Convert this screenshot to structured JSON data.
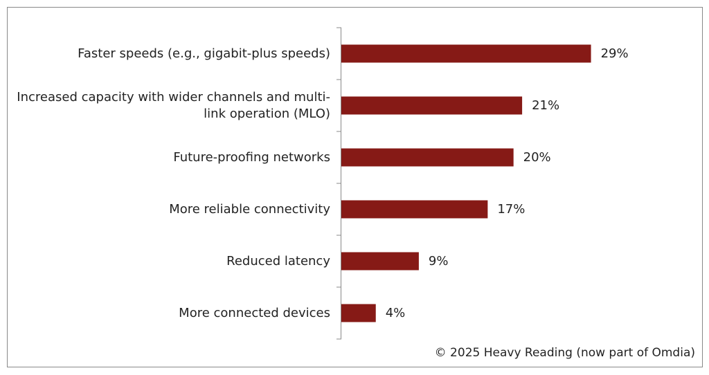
{
  "chart_data": {
    "type": "bar",
    "orientation": "horizontal",
    "categories": [
      "Faster speeds (e.g., gigabit-plus speeds)",
      "Increased capacity with wider channels and multi-link operation (MLO)",
      "Future-proofing networks",
      "More reliable connectivity",
      "Reduced latency",
      "More connected devices"
    ],
    "values": [
      29,
      21,
      20,
      17,
      9,
      4
    ],
    "value_labels": [
      "29%",
      "21%",
      "20%",
      "17%",
      "9%",
      "4%"
    ],
    "color": "#861a16",
    "xlim": [
      0,
      30
    ],
    "source": "© 2025 Heavy Reading (now part of Omdia)"
  }
}
